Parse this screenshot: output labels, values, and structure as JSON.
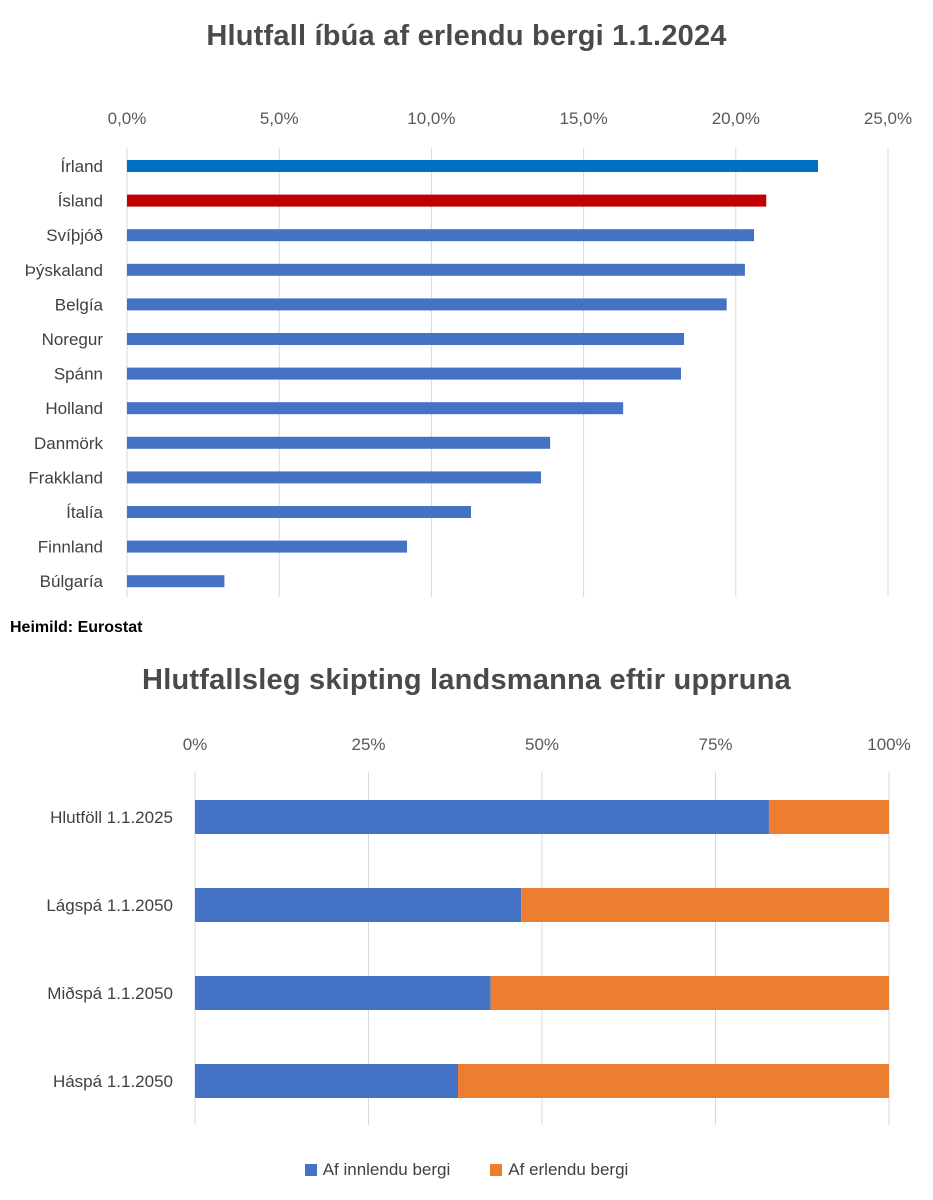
{
  "chart_data": [
    {
      "type": "bar",
      "orientation": "horizontal",
      "title": "Hlutfall íbúa af erlendu bergi 1.1.2024",
      "categories": [
        "Írland",
        "Ísland",
        "Svíþjóð",
        "Þýskaland",
        "Belgía",
        "Noregur",
        "Spánn",
        "Holland",
        "Danmörk",
        "Frakkland",
        "Ítalía",
        "Finnland",
        "Búlgaría"
      ],
      "values": [
        22.7,
        21.0,
        20.6,
        20.3,
        19.7,
        18.3,
        18.2,
        16.3,
        13.9,
        13.6,
        11.3,
        9.2,
        3.2
      ],
      "colors": [
        "#0070c0",
        "#c00000",
        "#4472c4",
        "#4472c4",
        "#4472c4",
        "#4472c4",
        "#4472c4",
        "#4472c4",
        "#4472c4",
        "#4472c4",
        "#4472c4",
        "#4472c4",
        "#4472c4"
      ],
      "xlim": [
        0,
        25
      ],
      "xticks": [
        "0,0%",
        "5,0%",
        "10,0%",
        "15,0%",
        "20,0%",
        "25,0%"
      ],
      "axis_position": "top",
      "grid": true,
      "source": "Heimild: Eurostat"
    },
    {
      "type": "bar",
      "orientation": "horizontal",
      "stacked": "percent",
      "title": "Hlutfallsleg skipting landsmanna eftir uppruna",
      "categories": [
        "Hlutföll 1.1.2025",
        "Lágspá 1.1.2050",
        "Miðspá 1.1.2050",
        "Háspá 1.1.2050"
      ],
      "series": [
        {
          "name": "Af innlendu bergi",
          "values": [
            82.7,
            47.0,
            42.6,
            37.9
          ],
          "color": "#4472c4"
        },
        {
          "name": "Af erlendu bergi",
          "values": [
            17.3,
            53.0,
            57.4,
            62.1
          ],
          "color": "#ed7d31"
        }
      ],
      "xlim": [
        0,
        100
      ],
      "xticks": [
        "0%",
        "25%",
        "50%",
        "75%",
        "100%"
      ],
      "axis_position": "top",
      "grid": true,
      "legend": "bottom"
    }
  ]
}
